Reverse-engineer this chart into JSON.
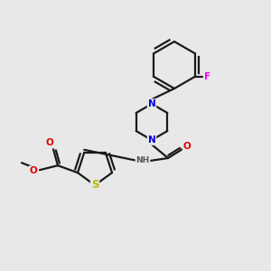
{
  "background_color": "#e8e8e8",
  "bond_color": "#1a1a1a",
  "atom_colors": {
    "N": "#0000dd",
    "O": "#dd0000",
    "S": "#bbbb00",
    "F": "#ee00ee",
    "H": "#555555",
    "C": "#1a1a1a"
  },
  "figsize": [
    3.0,
    3.0
  ],
  "dpi": 100,
  "lw": 1.6
}
